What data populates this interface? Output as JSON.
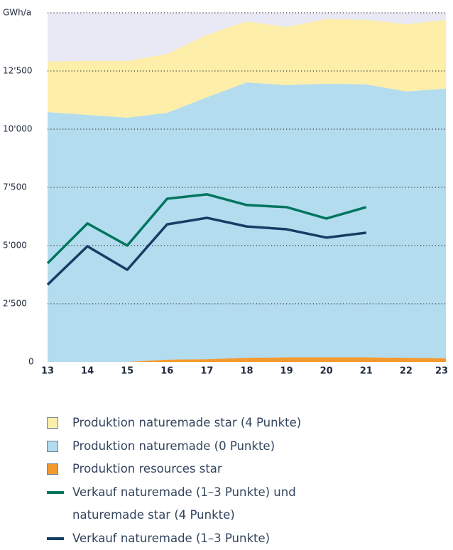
{
  "chart_data": {
    "type": "area",
    "y_label": "GWh/a",
    "categories": [
      "13",
      "14",
      "15",
      "16",
      "17",
      "18",
      "19",
      "20",
      "21",
      "22",
      "23"
    ],
    "ylim": [
      0,
      15000
    ],
    "yticks": [
      0,
      {
        "value": 2500,
        "label": "2'500"
      },
      {
        "value": 5000,
        "label": "5'000"
      },
      {
        "value": 7500,
        "label": "7'500"
      },
      {
        "value": 10000,
        "label": "10'000"
      },
      {
        "value": 12500,
        "label": "12'500"
      }
    ],
    "grid": true,
    "background": "#e8e9f5",
    "series": [
      {
        "name": "Produktion naturemade star (4 Punkte)",
        "type": "area",
        "stack": 2,
        "color": "#fdeeaa",
        "values": [
          2170,
          2320,
          2440,
          2530,
          2680,
          2620,
          2500,
          2780,
          2780,
          2890,
          2960
        ]
      },
      {
        "name": "Produktion naturemade (0 Punkte)",
        "type": "area",
        "stack": 1,
        "color": "#b3dcee",
        "values": [
          10730,
          10610,
          10490,
          10600,
          11250,
          11830,
          11690,
          11750,
          11720,
          11440,
          11580
        ]
      },
      {
        "name": "Produktion resources star",
        "type": "area",
        "stack": 0,
        "color": "#f39a2f",
        "values": [
          0,
          0,
          0,
          100,
          120,
          180,
          200,
          200,
          200,
          180,
          160
        ]
      },
      {
        "name": "Verkauf naturemade (1–3 Punkte) und naturemade star (4 Punkte)",
        "type": "line",
        "color": "#00755e",
        "values": [
          4240,
          5950,
          5000,
          7010,
          7200,
          6740,
          6650,
          6160,
          6650,
          null,
          null
        ]
      },
      {
        "name": "Verkauf naturemade (1–3 Punkte)",
        "type": "line",
        "color": "#163e64",
        "values": [
          3320,
          4970,
          3960,
          5910,
          6190,
          5820,
          5700,
          5340,
          5550,
          null,
          null
        ]
      }
    ]
  }
}
